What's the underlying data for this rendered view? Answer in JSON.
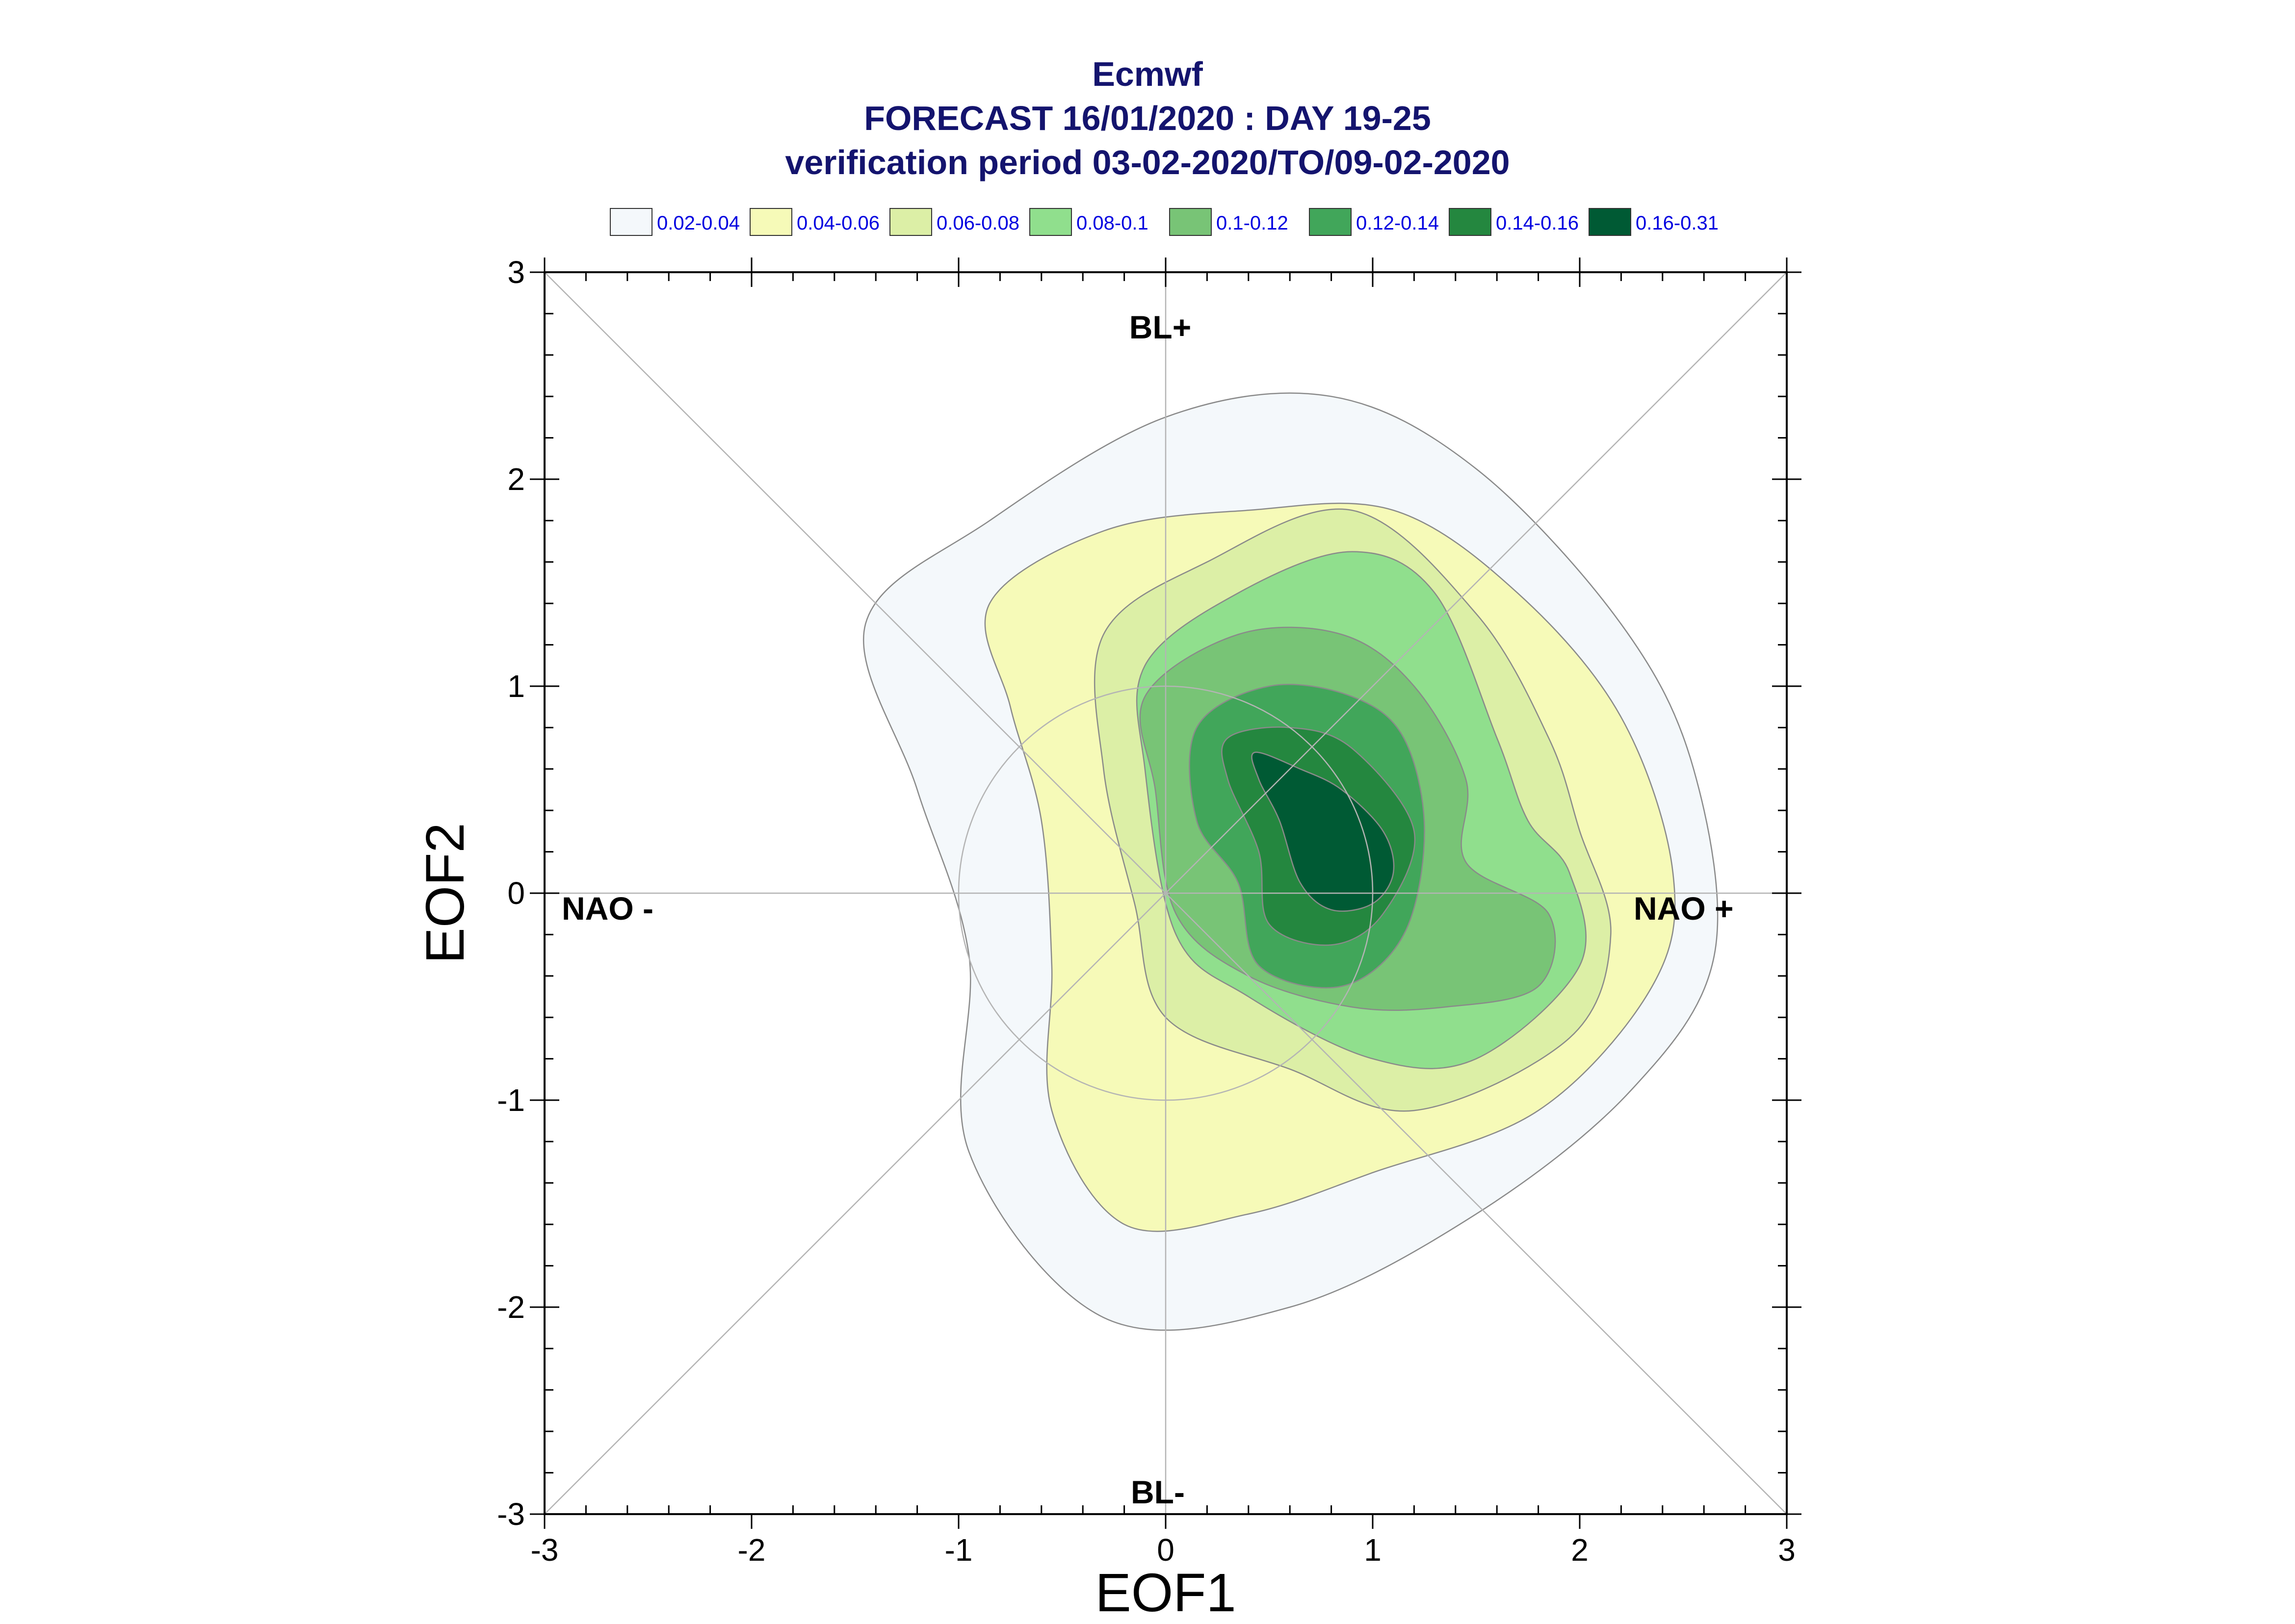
{
  "header": {
    "title": "Ecmwf",
    "subtitle": "FORECAST 16/01/2020 : DAY 19-25",
    "period": "verification period 03-02-2020/TO/09-02-2020"
  },
  "legend": [
    {
      "label": "0.02-0.04",
      "color": "#f4f8fb"
    },
    {
      "label": "0.04-0.06",
      "color": "#f6fab8"
    },
    {
      "label": "0.06-0.08",
      "color": "#dcefa6"
    },
    {
      "label": "0.08-0.1",
      "color": "#90df8d"
    },
    {
      "label": "0.1-0.12",
      "color": "#78c476"
    },
    {
      "label": "0.12-0.14",
      "color": "#41a65a"
    },
    {
      "label": "0.14-0.16",
      "color": "#24873f"
    },
    {
      "label": "0.16-0.31",
      "color": "#005a34"
    }
  ],
  "regime_labels": {
    "top": "BL+",
    "bottom": "BL-",
    "left": "NAO -",
    "right": "NAO +"
  },
  "chart_data": {
    "type": "contour",
    "xlabel": "EOF1",
    "ylabel": "EOF2",
    "xlim": [
      -3,
      3
    ],
    "ylim": [
      -3,
      3
    ],
    "xticks": [
      "-3",
      "-2",
      "-1",
      "0",
      "1",
      "2",
      "3"
    ],
    "yticks": [
      "3",
      "2",
      "1",
      "0",
      "-1",
      "-2",
      "-3"
    ],
    "reference_lines": [
      "x=0",
      "y=0",
      "diagonal y=x",
      "diagonal y=-x",
      "unit circle"
    ],
    "levels": [
      {
        "range": "0.02-0.04",
        "outline": [
          [
            -0.85,
            1.8
          ],
          [
            0,
            2.3
          ],
          [
            0.8,
            2.4
          ],
          [
            1.5,
            2.05
          ],
          [
            2.2,
            1.3
          ],
          [
            2.55,
            0.6
          ],
          [
            2.65,
            -0.3
          ],
          [
            2.25,
            -0.95
          ],
          [
            1.5,
            -1.55
          ],
          [
            0.6,
            -2.0
          ],
          [
            -0.3,
            -2.05
          ],
          [
            -0.95,
            -1.25
          ],
          [
            -0.95,
            -0.3
          ],
          [
            -1.2,
            0.5
          ],
          [
            -1.45,
            1.3
          ]
        ]
      },
      {
        "range": "0.04-0.06",
        "outline": [
          [
            -0.85,
            1.4
          ],
          [
            -0.3,
            1.75
          ],
          [
            0.4,
            1.85
          ],
          [
            1.1,
            1.85
          ],
          [
            1.7,
            1.45
          ],
          [
            2.2,
            0.85
          ],
          [
            2.45,
            0.1
          ],
          [
            2.35,
            -0.45
          ],
          [
            1.8,
            -1.05
          ],
          [
            1.0,
            -1.35
          ],
          [
            0.4,
            -1.55
          ],
          [
            -0.2,
            -1.6
          ],
          [
            -0.55,
            -1.05
          ],
          [
            -0.55,
            -0.35
          ],
          [
            -0.6,
            0.35
          ],
          [
            -0.75,
            0.9
          ]
        ]
      },
      {
        "range": "0.06-0.08",
        "outline": [
          [
            -0.3,
            1.25
          ],
          [
            0.2,
            1.6
          ],
          [
            0.9,
            1.85
          ],
          [
            1.5,
            1.35
          ],
          [
            1.85,
            0.75
          ],
          [
            2.0,
            0.3
          ],
          [
            2.15,
            -0.2
          ],
          [
            1.95,
            -0.7
          ],
          [
            1.2,
            -1.05
          ],
          [
            0.6,
            -0.85
          ],
          [
            0,
            -0.6
          ],
          [
            -0.15,
            -0.05
          ],
          [
            -0.3,
            0.6
          ]
        ]
      },
      {
        "range": "0.08-0.1",
        "outline": [
          [
            -0.1,
            1.1
          ],
          [
            0.35,
            1.45
          ],
          [
            0.9,
            1.65
          ],
          [
            1.3,
            1.45
          ],
          [
            1.6,
            0.75
          ],
          [
            1.75,
            0.35
          ],
          [
            1.95,
            0.1
          ],
          [
            2.0,
            -0.35
          ],
          [
            1.5,
            -0.8
          ],
          [
            1.0,
            -0.8
          ],
          [
            0.4,
            -0.5
          ],
          [
            0.05,
            -0.2
          ],
          [
            -0.1,
            0.6
          ]
        ]
      },
      {
        "range": "0.1-0.12",
        "outline": [
          [
            -0.1,
            0.95
          ],
          [
            0.35,
            1.25
          ],
          [
            0.85,
            1.25
          ],
          [
            1.2,
            1.0
          ],
          [
            1.45,
            0.55
          ],
          [
            1.45,
            0.15
          ],
          [
            1.85,
            -0.1
          ],
          [
            1.8,
            -0.45
          ],
          [
            1.35,
            -0.55
          ],
          [
            0.9,
            -0.55
          ],
          [
            0.4,
            -0.4
          ],
          [
            0.05,
            -0.1
          ],
          [
            -0.05,
            0.5
          ]
        ]
      },
      {
        "range": "0.12-0.14",
        "outline": [
          [
            0.15,
            0.8
          ],
          [
            0.5,
            1.0
          ],
          [
            0.9,
            0.95
          ],
          [
            1.15,
            0.75
          ],
          [
            1.25,
            0.3
          ],
          [
            1.15,
            -0.2
          ],
          [
            0.85,
            -0.45
          ],
          [
            0.45,
            -0.35
          ],
          [
            0.35,
            0.05
          ],
          [
            0.15,
            0.35
          ]
        ]
      },
      {
        "range": "0.14-0.16",
        "outline": [
          [
            0.3,
            0.75
          ],
          [
            0.6,
            0.8
          ],
          [
            0.9,
            0.7
          ],
          [
            1.2,
            0.3
          ],
          [
            1.05,
            -0.1
          ],
          [
            0.8,
            -0.25
          ],
          [
            0.5,
            -0.15
          ],
          [
            0.45,
            0.2
          ],
          [
            0.3,
            0.55
          ]
        ]
      },
      {
        "range": "0.16-0.31",
        "outline": [
          [
            0.43,
            0.68
          ],
          [
            0.65,
            0.6
          ],
          [
            0.85,
            0.5
          ],
          [
            1.05,
            0.3
          ],
          [
            1.1,
            0.1
          ],
          [
            1.0,
            -0.05
          ],
          [
            0.8,
            -0.08
          ],
          [
            0.65,
            0.05
          ],
          [
            0.55,
            0.35
          ],
          [
            0.45,
            0.55
          ]
        ]
      }
    ]
  }
}
